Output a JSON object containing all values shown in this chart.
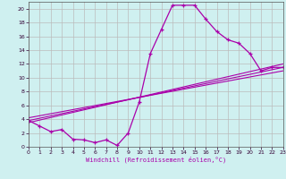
{
  "xlabel": "Windchill (Refroidissement éolien,°C)",
  "background_color": "#cff0f0",
  "line_color": "#aa00aa",
  "grid_color": "#bbbbbb",
  "xlim": [
    0,
    23
  ],
  "ylim": [
    0,
    21
  ],
  "xticks": [
    0,
    1,
    2,
    3,
    4,
    5,
    6,
    7,
    8,
    9,
    10,
    11,
    12,
    13,
    14,
    15,
    16,
    17,
    18,
    19,
    20,
    21,
    22,
    23
  ],
  "yticks": [
    0,
    2,
    4,
    6,
    8,
    10,
    12,
    14,
    16,
    18,
    20
  ],
  "series1_x": [
    0,
    1,
    2,
    3,
    4,
    5,
    6,
    7,
    8,
    9,
    10,
    11,
    12,
    13,
    14,
    15,
    16,
    17,
    18,
    19,
    20,
    21,
    22,
    23
  ],
  "series1_y": [
    3.8,
    3.0,
    2.2,
    2.5,
    1.1,
    1.0,
    0.6,
    1.0,
    0.2,
    2.0,
    6.5,
    13.5,
    17.0,
    20.5,
    20.5,
    20.5,
    18.5,
    16.7,
    15.5,
    15.0,
    13.5,
    11.0,
    11.5,
    11.5
  ],
  "line2_x": [
    0,
    23
  ],
  "line2_y": [
    3.5,
    12.0
  ],
  "line3_x": [
    0,
    23
  ],
  "line3_y": [
    4.2,
    11.0
  ],
  "line4_x": [
    0,
    23
  ],
  "line4_y": [
    3.8,
    11.5
  ]
}
